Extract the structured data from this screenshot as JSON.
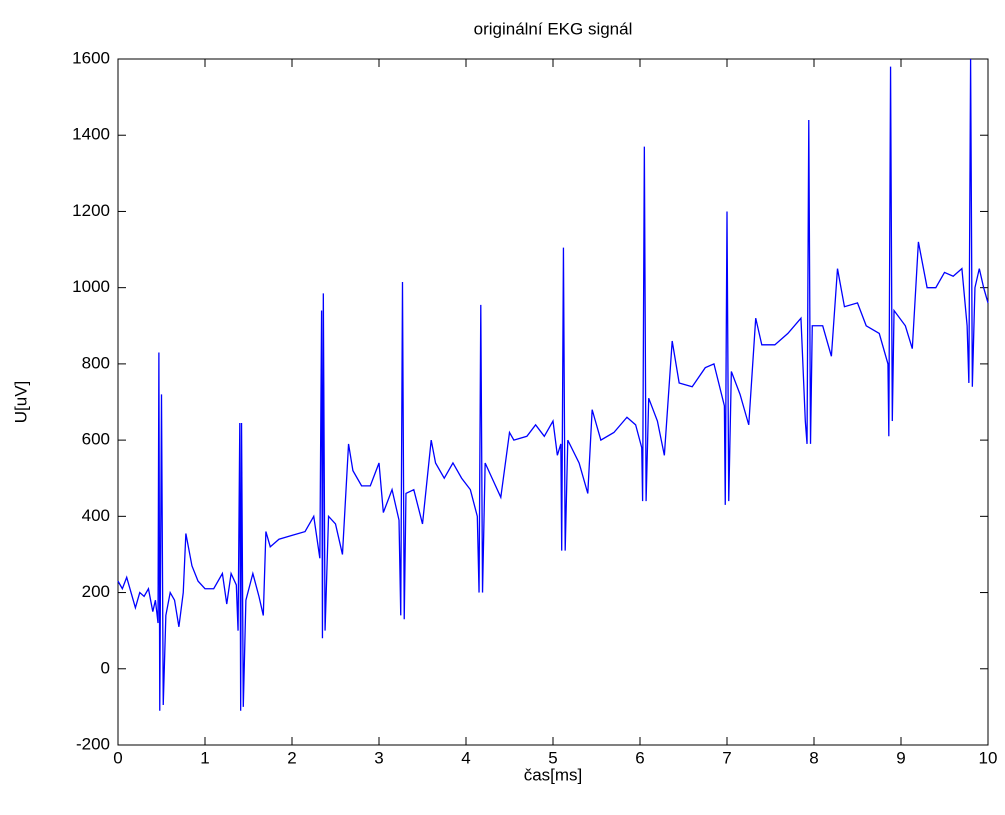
{
  "chart_data": {
    "type": "line",
    "title": "originální EKG signál",
    "x_label": "čas[ms]",
    "y_label": "U[uV]",
    "x": [
      0,
      0.05,
      0.1,
      0.15,
      0.2,
      0.25,
      0.3,
      0.35,
      0.4,
      0.43,
      0.46,
      0.47,
      0.48,
      0.5,
      0.52,
      0.55,
      0.6,
      0.65,
      0.7,
      0.75,
      0.78,
      0.85,
      0.92,
      1.0,
      1.1,
      1.2,
      1.25,
      1.3,
      1.36,
      1.38,
      1.4,
      1.41,
      1.42,
      1.44,
      1.47,
      1.55,
      1.62,
      1.67,
      1.7,
      1.75,
      1.85,
      2.0,
      2.15,
      2.25,
      2.32,
      2.34,
      2.35,
      2.36,
      2.38,
      2.42,
      2.5,
      2.58,
      2.65,
      2.7,
      2.8,
      2.9,
      3.0,
      3.05,
      3.15,
      3.23,
      3.25,
      3.27,
      3.29,
      3.31,
      3.4,
      3.5,
      3.6,
      3.65,
      3.75,
      3.85,
      3.95,
      4.05,
      4.13,
      4.15,
      4.17,
      4.19,
      4.22,
      4.3,
      4.4,
      4.5,
      4.55,
      4.7,
      4.8,
      4.9,
      5.0,
      5.05,
      5.09,
      5.1,
      5.12,
      5.14,
      5.17,
      5.3,
      5.4,
      5.45,
      5.55,
      5.7,
      5.85,
      5.95,
      6.02,
      6.03,
      6.05,
      6.07,
      6.1,
      6.2,
      6.28,
      6.37,
      6.45,
      6.6,
      6.75,
      6.85,
      6.97,
      6.98,
      7.0,
      7.02,
      7.05,
      7.15,
      7.25,
      7.33,
      7.4,
      7.55,
      7.7,
      7.85,
      7.9,
      7.92,
      7.94,
      7.96,
      7.98,
      8.1,
      8.2,
      8.27,
      8.35,
      8.5,
      8.6,
      8.75,
      8.85,
      8.86,
      8.88,
      8.9,
      8.92,
      9.05,
      9.13,
      9.2,
      9.3,
      9.4,
      9.5,
      9.6,
      9.7,
      9.76,
      9.78,
      9.8,
      9.82,
      9.85,
      9.9,
      9.95,
      10
    ],
    "values": [
      230,
      210,
      240,
      200,
      160,
      200,
      190,
      210,
      150,
      180,
      120,
      830,
      -110,
      720,
      -95,
      140,
      200,
      180,
      110,
      200,
      355,
      270,
      230,
      210,
      210,
      250,
      170,
      250,
      220,
      100,
      645,
      -110,
      645,
      -100,
      180,
      250,
      190,
      140,
      360,
      320,
      340,
      350,
      360,
      400,
      290,
      940,
      80,
      985,
      100,
      400,
      380,
      300,
      590,
      520,
      480,
      480,
      540,
      410,
      470,
      390,
      140,
      1015,
      130,
      460,
      470,
      380,
      600,
      540,
      500,
      540,
      500,
      470,
      400,
      200,
      955,
      200,
      540,
      500,
      450,
      620,
      600,
      610,
      640,
      610,
      650,
      560,
      590,
      310,
      1105,
      310,
      600,
      540,
      460,
      680,
      600,
      620,
      660,
      640,
      580,
      440,
      1370,
      440,
      710,
      650,
      560,
      860,
      750,
      740,
      790,
      800,
      690,
      430,
      1200,
      440,
      780,
      720,
      640,
      920,
      850,
      850,
      880,
      920,
      650,
      590,
      1440,
      590,
      900,
      900,
      820,
      1050,
      950,
      960,
      900,
      880,
      800,
      610,
      1580,
      650,
      940,
      900,
      840,
      1120,
      1000,
      1000,
      1040,
      1030,
      1050,
      900,
      750,
      1600,
      740,
      1000,
      1050,
      1000,
      960
    ],
    "color": "#0000ff",
    "xlim": [
      0,
      10
    ],
    "xticks": [
      0,
      1,
      2,
      3,
      4,
      5,
      6,
      7,
      8,
      9,
      10
    ],
    "ylim": [
      -200,
      1600
    ],
    "yticks": [
      -200,
      0,
      200,
      400,
      600,
      800,
      1000,
      1200,
      1400,
      1600
    ]
  }
}
